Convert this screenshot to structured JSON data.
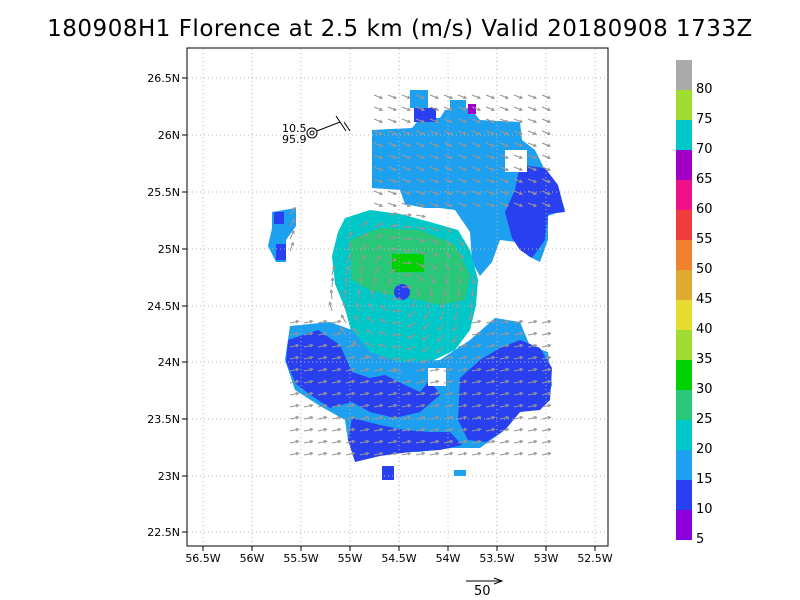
{
  "title": "180908H1 Florence at 2.5 km (m/s) Valid 20180908 1733Z",
  "axes": {
    "x_ticks": [
      "56.5W",
      "56W",
      "55.5W",
      "55W",
      "54.5W",
      "54W",
      "53.5W",
      "53W",
      "52.5W"
    ],
    "y_ticks": [
      "26.5N",
      "26N",
      "25.5N",
      "25N",
      "24.5N",
      "24N",
      "23.5N",
      "23N",
      "22.5N"
    ]
  },
  "station": {
    "top_value": "10.5",
    "bottom_value": "95.9"
  },
  "colorbar": {
    "labels": [
      "80",
      "75",
      "70",
      "65",
      "60",
      "55",
      "50",
      "45",
      "40",
      "35",
      "30",
      "25",
      "20",
      "15",
      "10",
      "5"
    ],
    "colors": [
      "#aaaaaa",
      "#a0dc32",
      "#00c8c8",
      "#a000c8",
      "#f0108a",
      "#f03c3c",
      "#f0822d",
      "#e0aa30",
      "#e6dc32",
      "#a0dc32",
      "#00d200",
      "#28c878",
      "#00c8c8",
      "#1ea0f0",
      "#2840f0",
      "#8c00dc"
    ]
  },
  "reference_vector": {
    "label": "50"
  },
  "palette": {
    "light_blue": "#1ea0f0",
    "blue": "#2840f0",
    "teal": "#00c8c8",
    "green_teal": "#28c878",
    "green": "#00d200",
    "purple": "#a000c8",
    "arrow": "#969696"
  }
}
